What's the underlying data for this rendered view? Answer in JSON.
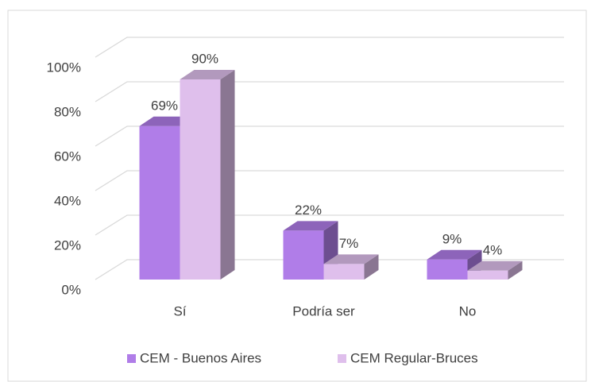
{
  "chart_data": {
    "type": "bar3d",
    "categories": [
      "Sí",
      "Podría ser",
      "No"
    ],
    "series": [
      {
        "name": "CEM - Buenos Aires",
        "color": "#b07de8",
        "values": [
          69,
          22,
          9
        ],
        "value_labels": [
          "69%",
          "22%",
          "9%"
        ]
      },
      {
        "name": "CEM Regular-Bruces",
        "color": "#dfbfec",
        "values": [
          90,
          7,
          4
        ],
        "value_labels": [
          "90%",
          "7%",
          "4%"
        ]
      }
    ],
    "ylim": [
      0,
      100
    ],
    "yticks": [
      {
        "value": 0,
        "label": "0%"
      },
      {
        "value": 20,
        "label": "20%"
      },
      {
        "value": 40,
        "label": "40%"
      },
      {
        "value": 60,
        "label": "60%"
      },
      {
        "value": 80,
        "label": "80%"
      },
      {
        "value": 100,
        "label": "100%"
      }
    ],
    "grid": true,
    "legend": "bottom"
  }
}
